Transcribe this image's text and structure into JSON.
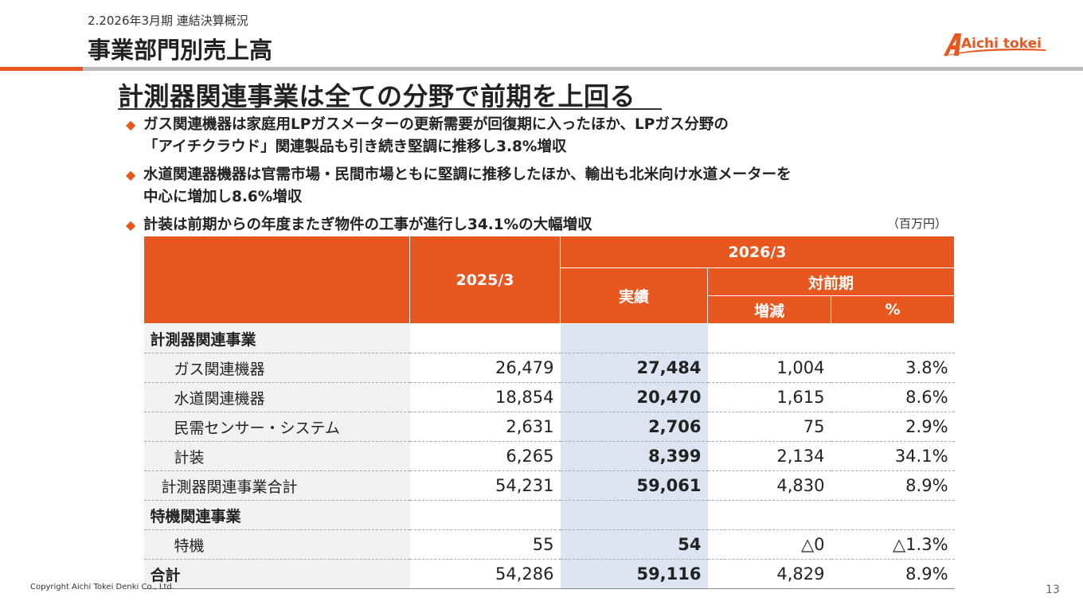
{
  "header": {
    "breadcrumb": "2.2026年3月期 連結決算概況",
    "title": "事業部門別売上高",
    "logo_text": "Aichi tokei",
    "logo_color": "#e8571e"
  },
  "headline": "計測器関連事業は全ての分野で前期を上回る",
  "bullets": [
    {
      "line1": "ガス関連機器は家庭用LPガスメーターの更新需要が回復期に入ったほか、LPガス分野の",
      "line2": "「アイチクラウド」関連製品も引き続き堅調に推移し3.8%増収"
    },
    {
      "line1": "水道関連器機器は官需市場・民間市場ともに堅調に推移したほか、輸出も北米向け水道メーターを",
      "line2": "中心に増加し8.6%増収"
    },
    {
      "line1": "計装は前期からの年度またぎ物件の工事が進行し34.1%の大幅増収",
      "line2": ""
    }
  ],
  "unit_note": "（百万円）",
  "table": {
    "headers": {
      "prev_year": "2025/3",
      "current_year": "2026/3",
      "actual": "実績",
      "yoy": "対前期",
      "change": "増減",
      "percent": "%"
    },
    "rows": [
      {
        "label": "計測器関連事業",
        "prev": "",
        "curr": "",
        "change": "",
        "pct": ""
      },
      {
        "label": "ガス関連機器",
        "prev": "26,479",
        "curr": "27,484",
        "change": "1,004",
        "pct": "3.8%"
      },
      {
        "label": "水道関連機器",
        "prev": "18,854",
        "curr": "20,470",
        "change": "1,615",
        "pct": "8.6%"
      },
      {
        "label": "民需センサー・システム",
        "prev": "2,631",
        "curr": "2,706",
        "change": "75",
        "pct": "2.9%"
      },
      {
        "label": "計装",
        "prev": "6,265",
        "curr": "8,399",
        "change": "2,134",
        "pct": "34.1%"
      },
      {
        "label": "計測器関連事業合計",
        "prev": "54,231",
        "curr": "59,061",
        "change": "4,830",
        "pct": "8.9%"
      },
      {
        "label": "特機関連事業",
        "prev": "",
        "curr": "",
        "change": "",
        "pct": ""
      },
      {
        "label": "特機",
        "prev": "55",
        "curr": "54",
        "change": "△0",
        "pct": "△1.3%"
      },
      {
        "label": "合計",
        "prev": "54,286",
        "curr": "59,116",
        "change": "4,829",
        "pct": "8.9%"
      }
    ]
  },
  "footer": {
    "copyright": "Copyright Aichi Tokei Denki Co., Ltd.",
    "page_number": "13"
  },
  "colors": {
    "accent": "#e8571e",
    "current_column": "#dde4f1",
    "label_column": "#f1f1f1"
  }
}
